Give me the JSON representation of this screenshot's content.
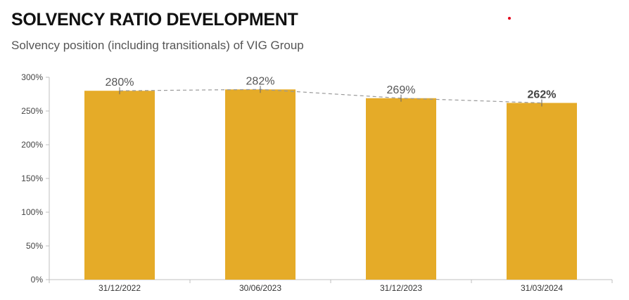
{
  "header": {
    "title": "SOLVENCY RATIO DEVELOPMENT",
    "subtitle": "Solvency position (including transitionals) of VIG Group"
  },
  "colors": {
    "bar": "#E5AB28",
    "trend_line": "#999999",
    "axis": "#BFBFBF",
    "accent_dot": "#E2001A"
  },
  "chart_data": {
    "type": "bar",
    "categories": [
      "31/12/2022",
      "30/06/2023",
      "31/12/2023",
      "31/03/2024"
    ],
    "values": [
      280,
      282,
      269,
      262
    ],
    "value_labels": [
      "280%",
      "282%",
      "269%",
      "262%"
    ],
    "highlighted_label_index": 3,
    "trend_line": "dashed",
    "y_ticks": [
      0,
      50,
      100,
      150,
      200,
      250,
      300
    ],
    "y_tick_labels": [
      "0%",
      "50%",
      "100%",
      "150%",
      "200%",
      "250%",
      "300%"
    ],
    "ylim": [
      0,
      300
    ],
    "grid": false,
    "legend": "none"
  }
}
